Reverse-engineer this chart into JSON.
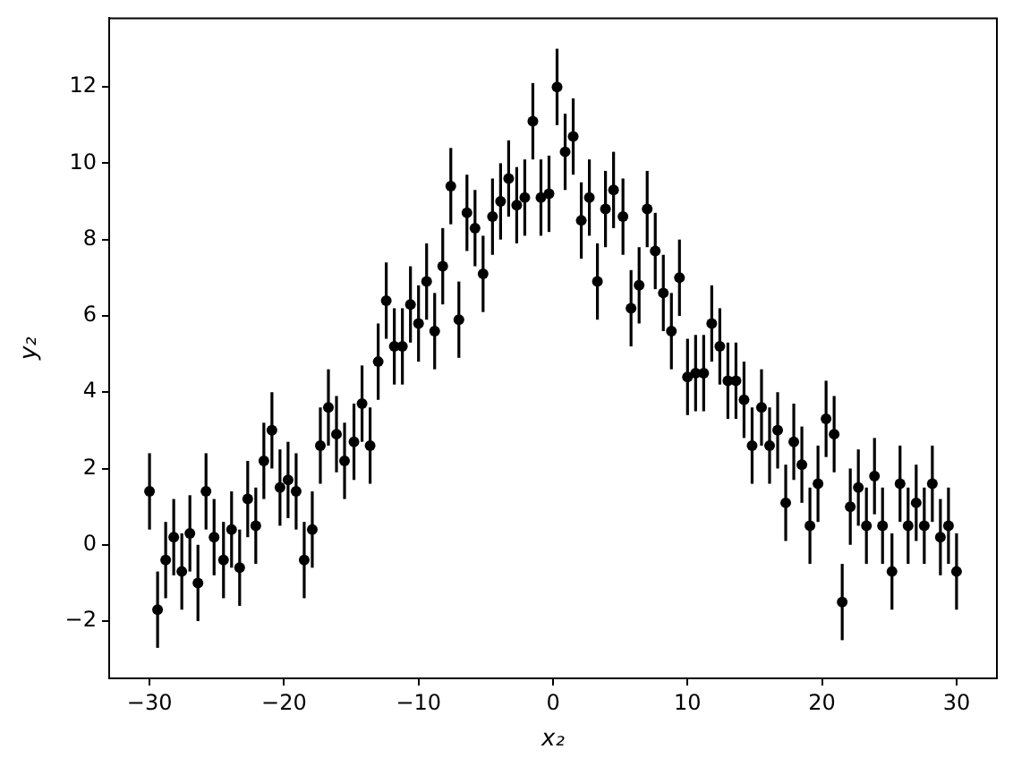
{
  "chart_data": {
    "type": "scatter",
    "xlabel": "x₂",
    "ylabel": "y₂",
    "color": "#000000",
    "marker": "circle",
    "grid": false,
    "legend": false,
    "xlim": [
      -33,
      33
    ],
    "ylim": [
      -3.5,
      13.8
    ],
    "xticks": [
      {
        "value": -30,
        "label": "−30"
      },
      {
        "value": -20,
        "label": "−20"
      },
      {
        "value": -10,
        "label": "−10"
      },
      0,
      10,
      20,
      30
    ],
    "yticks": [
      {
        "value": -2,
        "label": "−2"
      },
      0,
      2,
      4,
      6,
      8,
      10,
      12
    ],
    "x": [
      -30.0,
      -29.4,
      -28.8,
      -28.2,
      -27.6,
      -27.0,
      -26.4,
      -25.8,
      -25.2,
      -24.5,
      -23.9,
      -23.3,
      -22.7,
      -22.1,
      -21.5,
      -20.9,
      -20.3,
      -19.7,
      -19.1,
      -18.5,
      -17.9,
      -17.3,
      -16.7,
      -16.1,
      -15.5,
      -14.8,
      -14.2,
      -13.6,
      -13.0,
      -12.4,
      -11.8,
      -11.2,
      -10.6,
      -10.0,
      -9.4,
      -8.8,
      -8.2,
      -7.6,
      -7.0,
      -6.4,
      -5.8,
      -5.2,
      -4.5,
      -3.9,
      -3.3,
      -2.7,
      -2.1,
      -1.5,
      -0.9,
      -0.3,
      0.3,
      0.9,
      1.5,
      2.1,
      2.7,
      3.3,
      3.9,
      4.5,
      5.2,
      5.8,
      6.4,
      7.0,
      7.6,
      8.2,
      8.8,
      9.4,
      10.0,
      10.6,
      11.2,
      11.8,
      12.4,
      13.0,
      13.6,
      14.2,
      14.8,
      15.5,
      16.1,
      16.7,
      17.3,
      17.9,
      18.5,
      19.1,
      19.7,
      20.3,
      20.9,
      21.5,
      22.1,
      22.7,
      23.3,
      23.9,
      24.5,
      25.2,
      25.8,
      26.4,
      27.0,
      27.6,
      28.2,
      28.8,
      29.4,
      30.0
    ],
    "values": [
      1.4,
      -1.7,
      -0.4,
      0.2,
      -0.7,
      0.3,
      -1.0,
      1.4,
      0.2,
      -0.4,
      0.4,
      -0.6,
      1.2,
      0.5,
      2.2,
      3.0,
      1.5,
      1.7,
      1.4,
      -0.4,
      0.4,
      2.6,
      3.6,
      2.9,
      2.2,
      2.7,
      3.7,
      2.6,
      4.8,
      6.4,
      5.2,
      5.2,
      6.3,
      5.8,
      6.9,
      5.6,
      7.3,
      9.4,
      5.9,
      8.7,
      8.3,
      7.1,
      8.6,
      9.0,
      9.6,
      8.9,
      9.1,
      11.1,
      9.1,
      9.2,
      12.0,
      10.3,
      10.7,
      8.5,
      9.1,
      6.9,
      8.8,
      9.3,
      8.6,
      6.2,
      6.8,
      8.8,
      7.7,
      6.6,
      5.6,
      7.0,
      4.4,
      4.5,
      4.5,
      5.8,
      5.2,
      4.3,
      4.3,
      3.8,
      2.6,
      3.6,
      2.6,
      3.0,
      1.1,
      2.7,
      2.1,
      0.5,
      1.6,
      3.3,
      2.9,
      -1.5,
      1.0,
      1.5,
      0.5,
      1.8,
      0.5,
      -0.7,
      1.6,
      0.5,
      1.1,
      0.5,
      1.6,
      0.2,
      0.5,
      -0.7
    ],
    "errors": [
      1,
      1,
      1,
      1,
      1,
      1,
      1,
      1,
      1,
      1,
      1,
      1,
      1,
      1,
      1,
      1,
      1,
      1,
      1,
      1,
      1,
      1,
      1,
      1,
      1,
      1,
      1,
      1,
      1,
      1,
      1,
      1,
      1,
      1,
      1,
      1,
      1,
      1,
      1,
      1,
      1,
      1,
      1,
      1,
      1,
      1,
      1,
      1,
      1,
      1,
      1,
      1,
      1,
      1,
      1,
      1,
      1,
      1,
      1,
      1,
      1,
      1,
      1,
      1,
      1,
      1,
      1,
      1,
      1,
      1,
      1,
      1,
      1,
      1,
      1,
      1,
      1,
      1,
      1,
      1,
      1,
      1,
      1,
      1,
      1,
      1,
      1,
      1,
      1,
      1,
      1,
      1,
      1,
      1,
      1,
      1,
      1,
      1,
      1,
      1
    ]
  }
}
